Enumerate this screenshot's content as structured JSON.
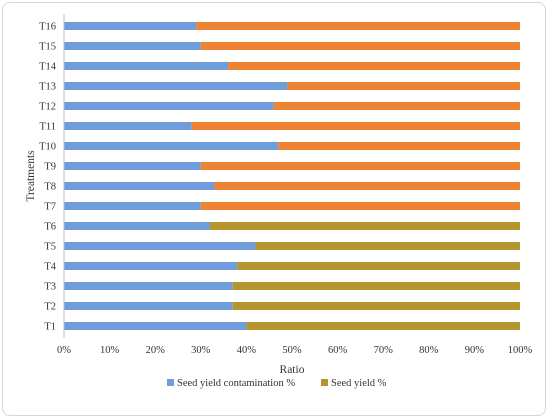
{
  "chart_data": {
    "type": "bar",
    "orientation": "horizontal",
    "stacked": true,
    "normalized_100": true,
    "categories": [
      "T1",
      "T2",
      "T3",
      "T4",
      "T5",
      "T6",
      "T7",
      "T8",
      "T9",
      "T10",
      "T11",
      "T12",
      "T13",
      "T14",
      "T15",
      "T16"
    ],
    "series": [
      {
        "name": "Seed yield contamination %",
        "color": "#6f9ddc",
        "values": [
          40,
          37,
          37,
          38,
          42,
          32,
          30,
          33,
          30,
          47,
          28,
          46,
          49,
          36,
          30,
          29
        ]
      },
      {
        "name": "Seed yield %",
        "color": "#b5952e",
        "values": [
          60,
          63,
          63,
          62,
          58,
          68,
          null,
          null,
          null,
          null,
          null,
          null,
          null,
          null,
          null,
          null
        ]
      },
      {
        "name": "",
        "color": "#ef8334",
        "values": [
          null,
          null,
          null,
          null,
          null,
          null,
          70,
          67,
          70,
          53,
          72,
          54,
          51,
          64,
          70,
          71
        ]
      }
    ],
    "xlabel": "Ratio",
    "ylabel": "Treatments",
    "xlim": [
      0,
      100
    ],
    "xticks": [
      "0%",
      "10%",
      "20%",
      "30%",
      "40%",
      "50%",
      "60%",
      "70%",
      "80%",
      "90%",
      "100%"
    ],
    "grid": false,
    "legend_position": "bottom"
  }
}
